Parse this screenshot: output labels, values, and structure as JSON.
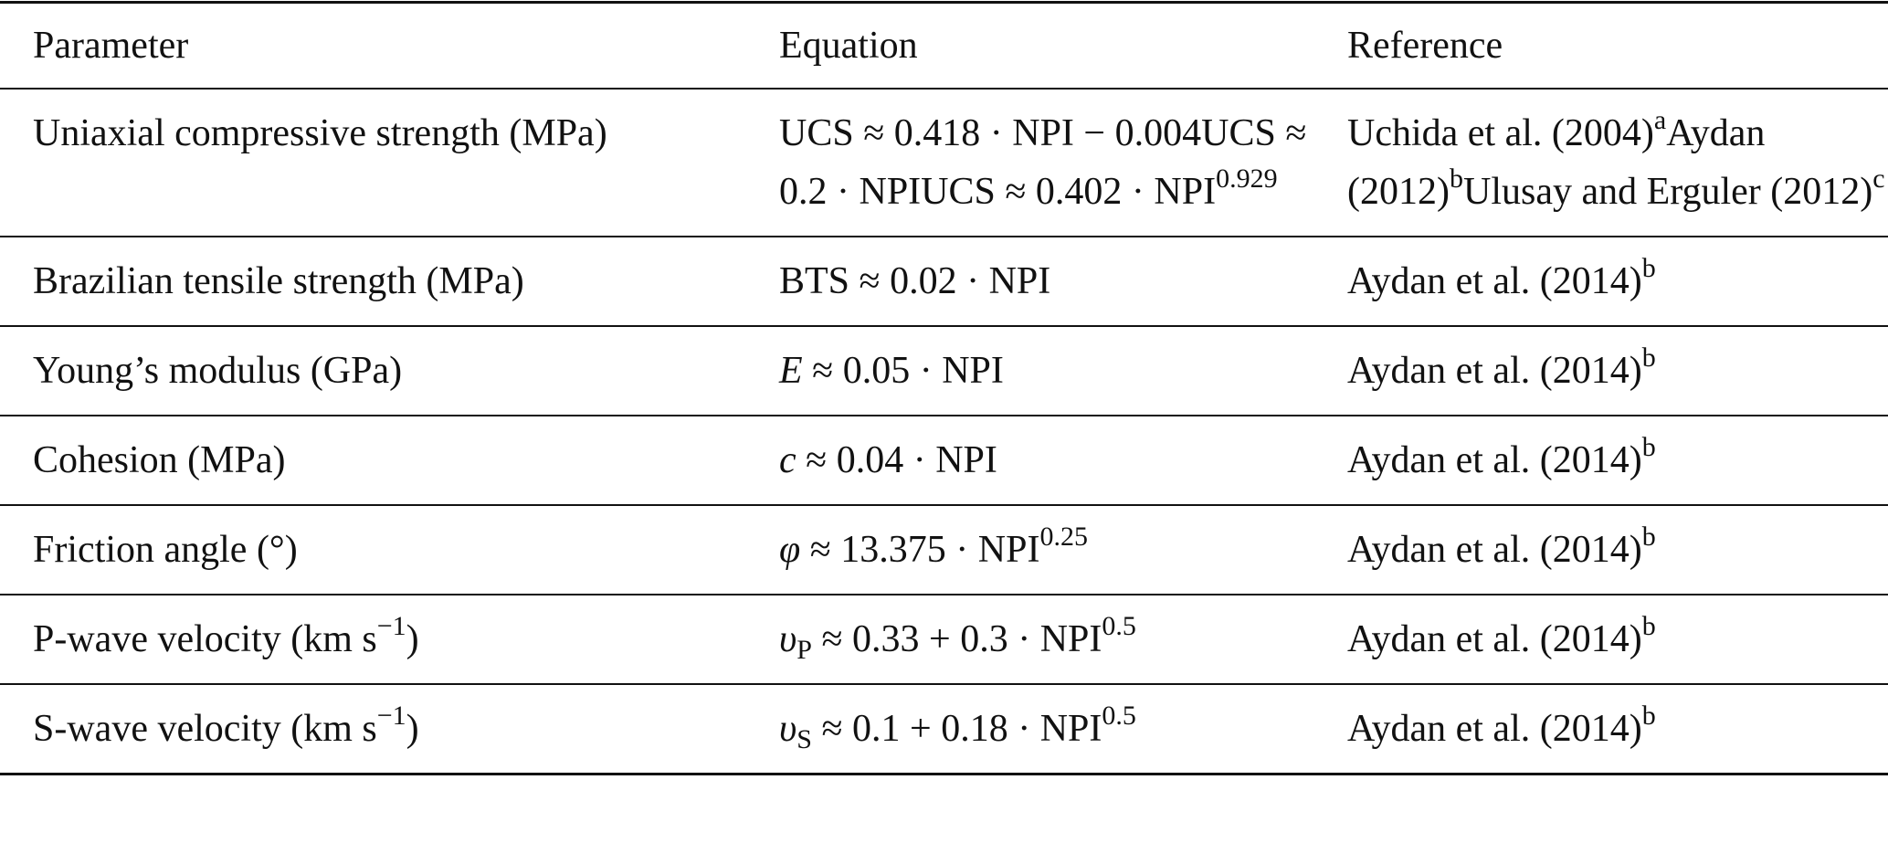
{
  "table": {
    "header": [
      "Parameter",
      "Equation",
      "Reference"
    ],
    "rows": [
      {
        "parameter": [
          {
            "t": "Uniaxial compressive strength (MPa)"
          }
        ],
        "equations": [
          [
            {
              "t": "UCS ≈ 0.418 · NPI − 0.004"
            }
          ],
          [
            {
              "t": "UCS ≈ 0.2 · NPI"
            }
          ],
          [
            {
              "t": "UCS ≈ 0.402 · NPI"
            },
            {
              "sup": "0.929"
            }
          ]
        ],
        "references": [
          {
            "text": "Uchida et al. (2004)",
            "note": "a"
          },
          {
            "text": "Aydan (2012)",
            "note": "b"
          },
          {
            "text": "Ulusay and Erguler (2012)",
            "note": "c"
          }
        ]
      },
      {
        "parameter": [
          {
            "t": "Brazilian tensile strength (MPa)"
          }
        ],
        "equations": [
          [
            {
              "t": "BTS ≈ 0.02 · NPI"
            }
          ]
        ],
        "references": [
          {
            "text": "Aydan et al. (2014)",
            "note": "b"
          }
        ]
      },
      {
        "parameter": [
          {
            "t": "Young’s modulus (GPa)"
          }
        ],
        "equations": [
          [
            {
              "i": "E"
            },
            {
              "t": " ≈ 0.05 · NPI"
            }
          ]
        ],
        "references": [
          {
            "text": "Aydan et al. (2014)",
            "note": "b"
          }
        ]
      },
      {
        "parameter": [
          {
            "t": "Cohesion (MPa)"
          }
        ],
        "equations": [
          [
            {
              "i": "c"
            },
            {
              "t": " ≈ 0.04 · NPI"
            }
          ]
        ],
        "references": [
          {
            "text": "Aydan et al. (2014)",
            "note": "b"
          }
        ]
      },
      {
        "parameter": [
          {
            "t": "Friction angle (°)"
          }
        ],
        "equations": [
          [
            {
              "i": "φ"
            },
            {
              "t": " ≈ 13.375 · NPI"
            },
            {
              "sup": "0.25"
            }
          ]
        ],
        "references": [
          {
            "text": "Aydan et al. (2014)",
            "note": "b"
          }
        ]
      },
      {
        "parameter": [
          {
            "t": "P-wave velocity (km s"
          },
          {
            "sup": "−1"
          },
          {
            "t": ")"
          }
        ],
        "equations": [
          [
            {
              "i": "υ"
            },
            {
              "sub": "P"
            },
            {
              "t": " ≈ 0.33 + 0.3 · NPI"
            },
            {
              "sup": "0.5"
            }
          ]
        ],
        "references": [
          {
            "text": "Aydan et al. (2014)",
            "note": "b"
          }
        ]
      },
      {
        "parameter": [
          {
            "t": "S-wave velocity (km s"
          },
          {
            "sup": "−1"
          },
          {
            "t": ")"
          }
        ],
        "equations": [
          [
            {
              "i": "υ"
            },
            {
              "sub": "S"
            },
            {
              "t": " ≈ 0.1 + 0.18 · NPI"
            },
            {
              "sup": "0.5"
            }
          ]
        ],
        "references": [
          {
            "text": "Aydan et al. (2014)",
            "note": "b"
          }
        ]
      }
    ]
  }
}
